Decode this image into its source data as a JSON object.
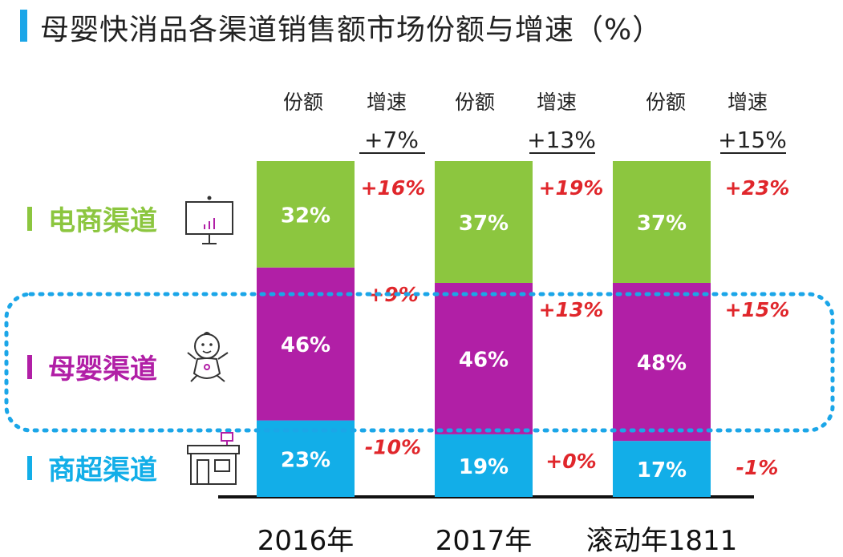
{
  "title": "母婴快消品各渠道销售额市场份额与增速（%）",
  "colors": {
    "ecommerce": "#8cc63f",
    "baby": "#b11fa6",
    "hyper": "#12aee8",
    "growth": "#e0262b",
    "title_accent": "#1ba6e8",
    "dotted_box": "#1ba6e8"
  },
  "channels": [
    {
      "key": "ecommerce",
      "label": "电商渠道",
      "icon": "monitor-chart-icon"
    },
    {
      "key": "baby",
      "label": "母婴渠道",
      "icon": "baby-icon"
    },
    {
      "key": "hyper",
      "label": "商超渠道",
      "icon": "store-icon"
    }
  ],
  "chart_data": {
    "type": "bar",
    "stacked": true,
    "unit": "%",
    "categories": [
      "2016年",
      "2017年",
      "滚动年1811"
    ],
    "column_headers": {
      "share": "份额",
      "growth": "增速"
    },
    "total_growth": [
      "+7%",
      "+13%",
      "+15%"
    ],
    "series": [
      {
        "name": "电商渠道",
        "key": "ecommerce",
        "values": [
          32,
          37,
          37
        ],
        "labels": [
          "32%",
          "37%",
          "37%"
        ],
        "growth": [
          "+16%",
          "+19%",
          "+23%"
        ]
      },
      {
        "name": "母婴渠道",
        "key": "baby",
        "values": [
          46,
          46,
          48
        ],
        "labels": [
          "46%",
          "46%",
          "48%"
        ],
        "growth": [
          "+9%",
          "+13%",
          "+15%"
        ]
      },
      {
        "name": "商超渠道",
        "key": "hyper",
        "values": [
          23,
          19,
          17
        ],
        "labels": [
          "23%",
          "19%",
          "17%"
        ],
        "growth": [
          "-10%",
          "+0%",
          "-1%"
        ]
      }
    ]
  }
}
